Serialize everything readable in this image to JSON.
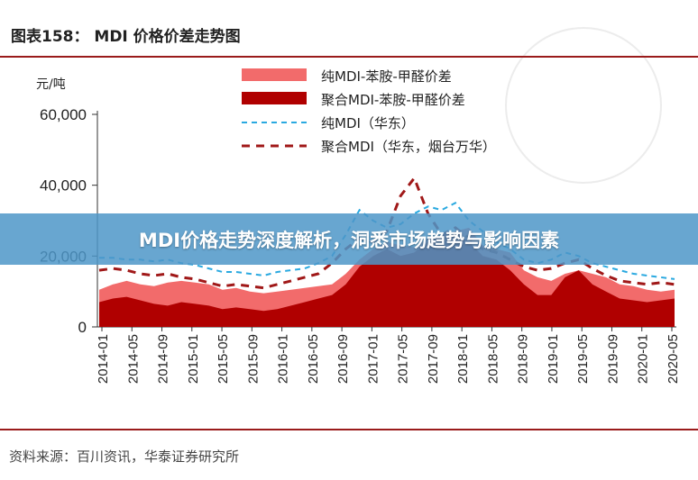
{
  "header": {
    "title": "图表158：   MDI 价格价差走势图"
  },
  "banner": {
    "text": "MDI价格走势深度解析，洞悉市场趋势与影响因素"
  },
  "footer": {
    "source": "资料来源：百川资讯，华泰证券研究所"
  },
  "chart_data": {
    "type": "area",
    "unit": "元/吨",
    "ylim": [
      0,
      60000
    ],
    "yticks": [
      0,
      20000,
      40000,
      60000
    ],
    "ytick_labels": [
      "0",
      "20,000",
      "40,000",
      "60,000"
    ],
    "xtick_labels": [
      "2014-01",
      "2014-05",
      "2014-09",
      "2015-01",
      "2015-05",
      "2015-09",
      "2016-01",
      "2016-05",
      "2016-09",
      "2017-01",
      "2017-05",
      "2017-09",
      "2018-01",
      "2018-05",
      "2018-09",
      "2019-01",
      "2019-05",
      "2019-09",
      "2020-01",
      "2020-05"
    ],
    "legend_position": "top-right",
    "colors": {
      "pure_spread": "#f26b6b",
      "polymeric_spread": "#b00000",
      "pure_price": "#2aa9e0",
      "polymeric_price": "#a01818"
    },
    "series": [
      {
        "name": "纯MDI-苯胺-甲醛价差",
        "style": "area",
        "values": [
          10500,
          12000,
          13000,
          12000,
          11500,
          12500,
          13000,
          12500,
          12000,
          10500,
          11000,
          10000,
          9500,
          10000,
          10500,
          11000,
          11500,
          12000,
          15000,
          19000,
          22000,
          24000,
          23000,
          22500,
          25000,
          26000,
          27000,
          28000,
          23000,
          22000,
          21000,
          16000,
          14000,
          13000,
          15000,
          16000,
          15000,
          14000,
          12000,
          11500,
          10500,
          10000,
          10500
        ]
      },
      {
        "name": "聚合MDI-苯胺-甲醛价差",
        "style": "area",
        "values": [
          7000,
          8000,
          8500,
          7500,
          6500,
          6000,
          7000,
          6500,
          6000,
          5000,
          5500,
          5000,
          4500,
          5000,
          6000,
          7000,
          8000,
          9000,
          12000,
          17000,
          20000,
          22000,
          20000,
          21000,
          24000,
          26000,
          27000,
          24000,
          20000,
          19000,
          16000,
          12000,
          9000,
          9000,
          14000,
          16000,
          12000,
          10000,
          8000,
          7500,
          7000,
          7500,
          8000
        ]
      },
      {
        "name": "纯MDI（华东）",
        "style": "dashed",
        "values": [
          19500,
          19500,
          19000,
          19000,
          18500,
          19000,
          18000,
          17500,
          16500,
          15500,
          15500,
          15000,
          14500,
          15500,
          16000,
          16500,
          18000,
          20000,
          26000,
          33000,
          30000,
          28000,
          29000,
          32000,
          34000,
          33000,
          35000,
          30000,
          27000,
          24000,
          22000,
          19000,
          18000,
          19000,
          21000,
          20000,
          18000,
          17000,
          16000,
          15000,
          14500,
          14000,
          13500
        ]
      },
      {
        "name": "聚合MDI（华东，烟台万华）",
        "style": "dashed",
        "values": [
          16000,
          16500,
          16000,
          15000,
          14500,
          15000,
          14000,
          13500,
          12500,
          11500,
          12000,
          11500,
          11000,
          12000,
          13000,
          14000,
          15000,
          18000,
          22000,
          25000,
          24000,
          27000,
          37000,
          42000,
          32000,
          26000,
          28000,
          25000,
          22000,
          21000,
          19000,
          17000,
          16000,
          16500,
          18000,
          19000,
          16500,
          14500,
          13000,
          12500,
          12000,
          12500,
          12000
        ]
      }
    ]
  }
}
